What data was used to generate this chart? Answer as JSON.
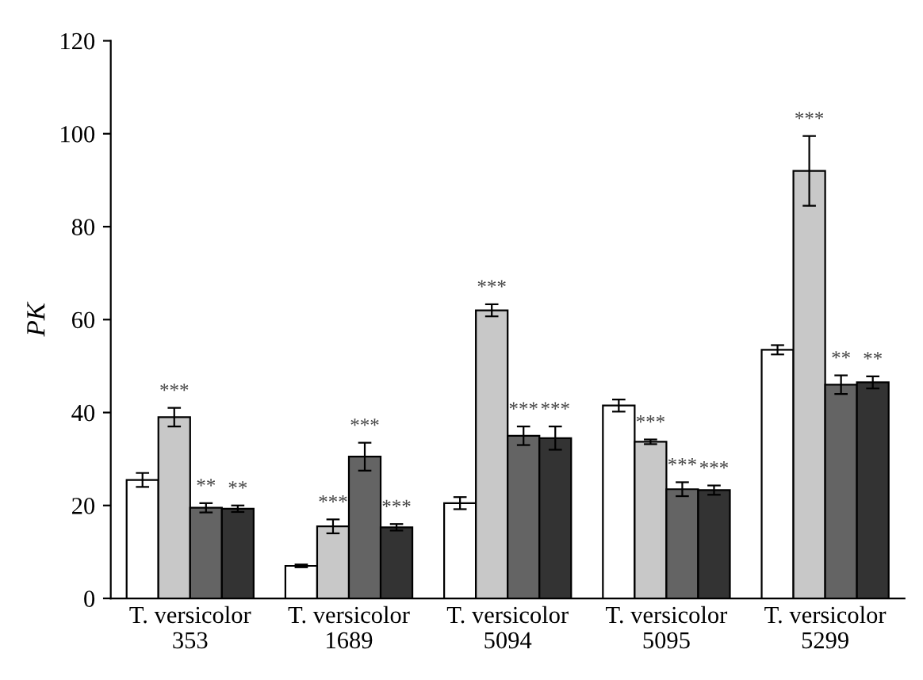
{
  "chart_data": {
    "type": "bar",
    "ylabel": "PK",
    "categories": [
      "T. versicolor\n353",
      "T. versicolor\n1689",
      "T. versicolor\n5094",
      "T. versicolor\n5095",
      "T. versicolor\n5299"
    ],
    "ylim": [
      0,
      120
    ],
    "yticks": [
      0,
      20,
      40,
      60,
      80,
      100,
      120
    ],
    "grid": false,
    "series": [
      {
        "color": "#ffffff",
        "values": [
          25.5,
          7,
          20.5,
          41.5,
          53.5
        ],
        "errors": [
          1.5,
          0.3,
          1.3,
          1.3,
          1
        ],
        "value_labels": [
          null,
          null,
          null,
          null,
          null
        ]
      },
      {
        "color": "#c8c8c8",
        "values": [
          39,
          15.5,
          62,
          33.7,
          92
        ],
        "errors": [
          2,
          1.5,
          1.3,
          0.5,
          7.5
        ],
        "value_labels": [
          "***",
          "***",
          "***",
          "***",
          "***"
        ]
      },
      {
        "color": "#646464",
        "values": [
          19.5,
          30.5,
          35,
          23.5,
          46
        ],
        "errors": [
          1,
          3,
          2,
          1.5,
          2
        ],
        "value_labels": [
          "**",
          "***",
          "***",
          "***",
          "**"
        ]
      },
      {
        "color": "#333333",
        "values": [
          19.3,
          15.3,
          34.5,
          23.3,
          46.5
        ],
        "errors": [
          0.7,
          0.7,
          2.5,
          1,
          1.3
        ],
        "value_labels": [
          "**",
          "***",
          "***",
          "***",
          "**"
        ]
      }
    ]
  }
}
